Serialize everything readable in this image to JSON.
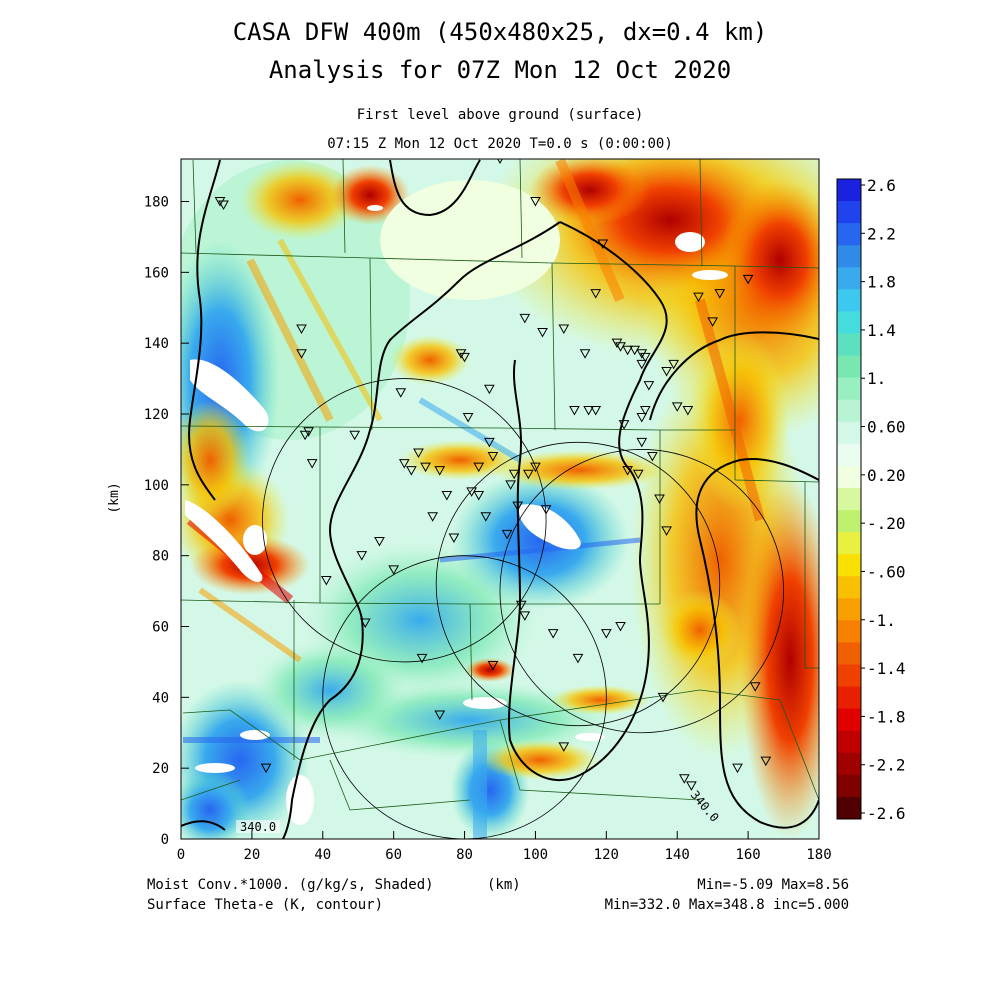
{
  "title": {
    "line1": "CASA DFW 400m (450x480x25, dx=0.4 km)",
    "line2": "Analysis for 07Z Mon 12 Oct 2020",
    "subtitle1": "First level above ground (surface)",
    "subtitle2": "07:15 Z Mon 12 Oct 2020    T=0.0 s (0:00:00)"
  },
  "axes": {
    "x_ticks": [
      "0",
      "20",
      "40",
      "60",
      "80",
      "100",
      "120",
      "140",
      "160",
      "180"
    ],
    "y_ticks": [
      "0",
      "20",
      "40",
      "60",
      "80",
      "100",
      "120",
      "140",
      "160",
      "180"
    ],
    "ylabel": "(km)",
    "xlabel": "(km)",
    "xlim": [
      0,
      180
    ],
    "ylim": [
      0,
      192
    ]
  },
  "colorbar": {
    "labels": [
      "2.6",
      "2.2",
      "1.8",
      "1.4",
      "1.",
      "0.60",
      "0.20",
      "-.20",
      "-.60",
      "-1.",
      "-1.4",
      "-1.8",
      "-2.2",
      "-2.6"
    ],
    "colors": [
      "#1a22e0",
      "#1f44ee",
      "#2766f0",
      "#2f8ae8",
      "#39aaee",
      "#3dc8f0",
      "#44dcdc",
      "#5ce0c0",
      "#78e8b0",
      "#98f0c0",
      "#b8f4d4",
      "#d4f8e8",
      "#e8fcf0",
      "#f0ffe0",
      "#d8f8a0",
      "#c0f070",
      "#e8f040",
      "#f8e000",
      "#f8c000",
      "#f8a000",
      "#f88000",
      "#f06000",
      "#f04000",
      "#e82000",
      "#e00000",
      "#c00000",
      "#a00000",
      "#800000",
      "#500000"
    ]
  },
  "contour_labels": [
    "340.0",
    "340.0"
  ],
  "footer": {
    "left1": "Moist Conv.*1000. (g/kg/s, Shaded)",
    "left2": "Surface Theta-e (K, contour)",
    "center": "(km)",
    "right1": "Min=-5.09 Max=8.56",
    "right2": "Min=332.0 Max=348.8 inc=5.000"
  },
  "radar_sites_km": [
    [
      63,
      90
    ],
    [
      130,
      70
    ],
    [
      80,
      40
    ],
    [
      112,
      72
    ]
  ],
  "radar_range_km": 40,
  "stations_km": [
    [
      11,
      180
    ],
    [
      12,
      179
    ],
    [
      34,
      144
    ],
    [
      34,
      137
    ],
    [
      35,
      114
    ],
    [
      36,
      115
    ],
    [
      37,
      106
    ],
    [
      49,
      114
    ],
    [
      51,
      80
    ],
    [
      56,
      84
    ],
    [
      60,
      76
    ],
    [
      62,
      126
    ],
    [
      63,
      106
    ],
    [
      65,
      104
    ],
    [
      67,
      109
    ],
    [
      69,
      105
    ],
    [
      71,
      91
    ],
    [
      73,
      104
    ],
    [
      75,
      97
    ],
    [
      77,
      85
    ],
    [
      79,
      137
    ],
    [
      80,
      136
    ],
    [
      81,
      119
    ],
    [
      82,
      98
    ],
    [
      84,
      97
    ],
    [
      86,
      91
    ],
    [
      87,
      127
    ],
    [
      87,
      112
    ],
    [
      84,
      105
    ],
    [
      88,
      108
    ],
    [
      93,
      100
    ],
    [
      94,
      103
    ],
    [
      92,
      86
    ],
    [
      96,
      66
    ],
    [
      97,
      63
    ],
    [
      90,
      192
    ],
    [
      100,
      180
    ],
    [
      97,
      147
    ],
    [
      102,
      143
    ],
    [
      105,
      58
    ],
    [
      108,
      144
    ],
    [
      111,
      121
    ],
    [
      114,
      137
    ],
    [
      115,
      121
    ],
    [
      117,
      121
    ],
    [
      117,
      154
    ],
    [
      119,
      168
    ],
    [
      123,
      140
    ],
    [
      124,
      139
    ],
    [
      126,
      138
    ],
    [
      128,
      138
    ],
    [
      130,
      137
    ],
    [
      131,
      136
    ],
    [
      130,
      134
    ],
    [
      131,
      121
    ],
    [
      132,
      128
    ],
    [
      130,
      119
    ],
    [
      130,
      112
    ],
    [
      125,
      117
    ],
    [
      126,
      104
    ],
    [
      129,
      103
    ],
    [
      133,
      108
    ],
    [
      135,
      96
    ],
    [
      137,
      87
    ],
    [
      137,
      132
    ],
    [
      139,
      134
    ],
    [
      140,
      122
    ],
    [
      143,
      121
    ],
    [
      146,
      153
    ],
    [
      150,
      146
    ],
    [
      152,
      154
    ],
    [
      160,
      158
    ],
    [
      142,
      17
    ],
    [
      144,
      15
    ],
    [
      157,
      20
    ],
    [
      165,
      22
    ],
    [
      162,
      43
    ],
    [
      136,
      40
    ],
    [
      124,
      60
    ],
    [
      120,
      58
    ],
    [
      112,
      51
    ],
    [
      108,
      26
    ],
    [
      95,
      94
    ],
    [
      88,
      49
    ],
    [
      73,
      35
    ],
    [
      68,
      51
    ],
    [
      52,
      61
    ],
    [
      41,
      73
    ],
    [
      24,
      20
    ],
    [
      98,
      103
    ],
    [
      100,
      105
    ],
    [
      103,
      93
    ]
  ]
}
